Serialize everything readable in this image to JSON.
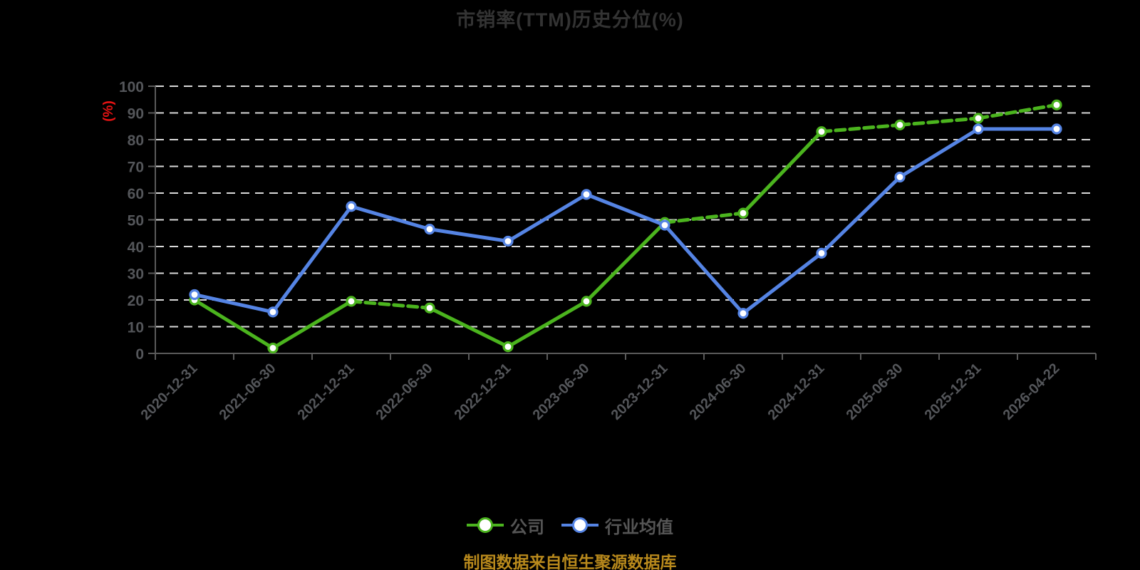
{
  "chart_data": {
    "type": "line",
    "title": "市销率(TTM)历史分位(%)",
    "ylabel": "(%)",
    "ylim": [
      0,
      100
    ],
    "ytick_step": 10,
    "grid": true,
    "legend_position": "bottom",
    "categories": [
      "2020-12-31",
      "2021-06-30",
      "2021-12-31",
      "2022-06-30",
      "2022-12-31",
      "2023-06-30",
      "2023-12-31",
      "2024-06-30",
      "2024-12-31",
      "2025-06-30",
      "2025-12-31",
      "2026-04-22"
    ],
    "series": [
      {
        "id": "company",
        "name": "公司",
        "color": "#4bb41e",
        "values": [
          20,
          2,
          19.5,
          17,
          2.5,
          19.5,
          49,
          52.5,
          83,
          85.5,
          88,
          93
        ]
      },
      {
        "id": "industry-average",
        "name": "行业均值",
        "color": "#5584e4",
        "values": [
          22,
          15.5,
          55,
          46.5,
          42,
          59.5,
          48,
          15,
          37.5,
          66,
          84,
          84
        ]
      }
    ]
  },
  "footer": {
    "source_note": "制图数据来自恒生聚源数据库"
  },
  "colors": {
    "background": "#000000",
    "title_text": "#333333",
    "axis_line": "#5a5a5a",
    "grid_line": "#d9d9d9",
    "axis_label": "#54565a",
    "legend_text": "#555555",
    "footer_text": "#b8891c",
    "unit_label": "#e81313",
    "marker_fill": "#ffffff"
  }
}
